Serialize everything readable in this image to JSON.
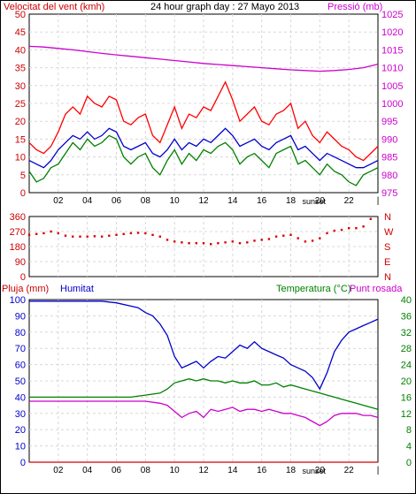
{
  "header": {
    "wind_label": "Velocitat del vent (kmh)",
    "title": "24 hour graph day : 27 Mayo 2013",
    "pressure_label": "Pressió (mb)"
  },
  "lower_header": {
    "rain_label": "Pluja (mm)",
    "humidity_label": "Humitat",
    "temp_label": "Temperatura (°C)",
    "dew_label": "Punt rosada"
  },
  "sunset_label": "sunset",
  "x_ticks": [
    "02",
    "04",
    "06",
    "08",
    "10",
    "12",
    "14",
    "16",
    "18",
    "20",
    "22",
    "|"
  ],
  "colors": {
    "wind_gust": "#ff0000",
    "wind_avg": "#0000cc",
    "wind_low": "#008000",
    "pressure": "#cc00cc",
    "direction": "#dd0000",
    "humidity": "#0000cc",
    "temperature": "#008000",
    "dewpoint": "#cc00cc",
    "rain": "#cc0000",
    "axis_label_red": "#cc0000",
    "axis_label_blue": "#0000cc",
    "axis_label_green": "#008000"
  },
  "chart_data": [
    {
      "type": "line",
      "name": "wind_pressure",
      "x_unit": "hours",
      "xlim": [
        0,
        24
      ],
      "y_ticks_left": [
        "0",
        "5",
        "10",
        "15",
        "20",
        "25",
        "30",
        "35",
        "40",
        "45",
        "50"
      ],
      "ylim_left": [
        0,
        50
      ],
      "y_ticks_right": [
        "975",
        "980",
        "985",
        "990",
        "995",
        "1000",
        "1005",
        "1010",
        "1015",
        "1020",
        "1025"
      ],
      "ylim_right": [
        975,
        1025
      ],
      "series": [
        {
          "key": "gust",
          "axis": "left",
          "x": [
            0,
            0.5,
            1,
            1.5,
            2,
            2.5,
            3,
            3.5,
            4,
            4.5,
            5,
            5.5,
            6,
            6.5,
            7,
            7.5,
            8,
            8.5,
            9,
            9.5,
            10,
            10.5,
            11,
            11.5,
            12,
            12.5,
            13,
            13.5,
            14,
            14.5,
            15,
            15.5,
            16,
            16.5,
            17,
            17.5,
            18,
            18.5,
            19,
            19.5,
            20,
            20.5,
            21,
            21.5,
            22,
            22.5,
            23,
            23.5,
            24
          ],
          "y": [
            14,
            12,
            11,
            13,
            17,
            22,
            24,
            22,
            27,
            25,
            24,
            27,
            26,
            20,
            19,
            21,
            22,
            16,
            14,
            19,
            24,
            18,
            22,
            21,
            24,
            23,
            27,
            31,
            26,
            20,
            22,
            24,
            20,
            19,
            22,
            23,
            25,
            18,
            20,
            16,
            14,
            17,
            15,
            13,
            12,
            10,
            9,
            11,
            13
          ]
        },
        {
          "key": "avg",
          "axis": "left",
          "x": [
            0,
            0.5,
            1,
            1.5,
            2,
            2.5,
            3,
            3.5,
            4,
            4.5,
            5,
            5.5,
            6,
            6.5,
            7,
            7.5,
            8,
            8.5,
            9,
            9.5,
            10,
            10.5,
            11,
            11.5,
            12,
            12.5,
            13,
            13.5,
            14,
            14.5,
            15,
            15.5,
            16,
            16.5,
            17,
            17.5,
            18,
            18.5,
            19,
            19.5,
            20,
            20.5,
            21,
            21.5,
            22,
            22.5,
            23,
            23.5,
            24
          ],
          "y": [
            9,
            8,
            7,
            9,
            12,
            14,
            16,
            15,
            17,
            15,
            16,
            18,
            17,
            13,
            12,
            13,
            14,
            11,
            10,
            12,
            15,
            12,
            14,
            13,
            15,
            14,
            16,
            18,
            16,
            13,
            14,
            15,
            13,
            12,
            14,
            15,
            16,
            12,
            13,
            11,
            9,
            11,
            10,
            9,
            8,
            7,
            7,
            8,
            9
          ]
        },
        {
          "key": "low",
          "axis": "left",
          "x": [
            0,
            0.5,
            1,
            1.5,
            2,
            2.5,
            3,
            3.5,
            4,
            4.5,
            5,
            5.5,
            6,
            6.5,
            7,
            7.5,
            8,
            8.5,
            9,
            9.5,
            10,
            10.5,
            11,
            11.5,
            12,
            12.5,
            13,
            13.5,
            14,
            14.5,
            15,
            15.5,
            16,
            16.5,
            17,
            17.5,
            18,
            18.5,
            19,
            19.5,
            20,
            20.5,
            21,
            21.5,
            22,
            22.5,
            23,
            23.5,
            24
          ],
          "y": [
            6,
            3,
            4,
            7,
            8,
            11,
            14,
            12,
            15,
            13,
            14,
            16,
            15,
            10,
            8,
            10,
            11,
            7,
            5,
            9,
            12,
            8,
            11,
            9,
            12,
            11,
            13,
            14,
            12,
            8,
            10,
            11,
            9,
            7,
            11,
            12,
            13,
            8,
            9,
            7,
            5,
            8,
            6,
            5,
            3,
            2,
            5,
            6,
            7
          ]
        },
        {
          "key": "pressure",
          "axis": "right",
          "x": [
            0,
            1,
            2,
            3,
            4,
            5,
            6,
            7,
            8,
            9,
            10,
            11,
            12,
            13,
            14,
            15,
            16,
            17,
            18,
            19,
            20,
            21,
            22,
            23,
            24
          ],
          "y": [
            1016,
            1015.8,
            1015.4,
            1015,
            1014.5,
            1014,
            1013.6,
            1013.2,
            1012.8,
            1012.4,
            1012,
            1011.6,
            1011.2,
            1010.9,
            1010.6,
            1010.3,
            1010,
            1009.7,
            1009.4,
            1009.2,
            1009,
            1009.2,
            1009.5,
            1010,
            1011
          ]
        }
      ]
    },
    {
      "type": "scatter",
      "name": "wind_direction",
      "x_unit": "hours",
      "xlim": [
        0,
        24
      ],
      "y_ticks_left": [
        "0",
        "90",
        "180",
        "270",
        "360"
      ],
      "y_ticks_right": [
        "N",
        "E",
        "S",
        "W",
        "N"
      ],
      "ylim": [
        0,
        360
      ],
      "series": [
        {
          "key": "direction",
          "x": [
            0,
            0.5,
            1,
            1.5,
            2,
            2.5,
            3,
            3.5,
            4,
            4.5,
            5,
            5.5,
            6,
            6.5,
            7,
            7.5,
            8,
            8.5,
            9,
            9.5,
            10,
            10.5,
            11,
            11.5,
            12,
            12.5,
            13,
            13.5,
            14,
            14.5,
            15,
            15.5,
            16,
            16.5,
            17,
            17.5,
            18,
            18.5,
            19,
            19.5,
            20,
            20.5,
            21,
            21.5,
            22,
            22.5,
            23,
            23.5
          ],
          "y": [
            250,
            255,
            260,
            270,
            260,
            245,
            240,
            240,
            240,
            242,
            240,
            245,
            250,
            255,
            260,
            262,
            260,
            250,
            240,
            220,
            210,
            205,
            200,
            200,
            200,
            195,
            200,
            205,
            210,
            200,
            205,
            215,
            220,
            225,
            240,
            245,
            250,
            230,
            210,
            215,
            230,
            260,
            275,
            280,
            290,
            290,
            300,
            345
          ]
        }
      ]
    },
    {
      "type": "line",
      "name": "humidity_temperature",
      "x_unit": "hours",
      "xlim": [
        0,
        24
      ],
      "y_ticks_left": [
        "0",
        "10",
        "20",
        "30",
        "40",
        "50",
        "60",
        "70",
        "80",
        "90",
        "100"
      ],
      "ylim_left": [
        0,
        100
      ],
      "y_ticks_right": [
        "0",
        "4",
        "8",
        "12",
        "16",
        "20",
        "24",
        "28",
        "32",
        "36",
        "40"
      ],
      "ylim_right": [
        0,
        40
      ],
      "series": [
        {
          "key": "humidity",
          "axis": "left",
          "x": [
            0,
            1,
            2,
            3,
            4,
            5,
            6,
            7,
            7.5,
            8,
            8.5,
            9,
            9.5,
            10,
            10.5,
            11,
            11.5,
            12,
            12.5,
            13,
            13.5,
            14,
            14.5,
            15,
            15.5,
            16,
            16.5,
            17,
            17.5,
            18,
            18.5,
            19,
            19.5,
            20,
            20.5,
            21,
            21.5,
            22,
            22.5,
            23,
            23.5,
            24
          ],
          "y": [
            99,
            99,
            99,
            99,
            99,
            99,
            98,
            96,
            95,
            92,
            90,
            85,
            78,
            65,
            58,
            60,
            62,
            58,
            62,
            65,
            64,
            68,
            72,
            70,
            74,
            70,
            68,
            66,
            64,
            60,
            58,
            56,
            52,
            45,
            55,
            68,
            75,
            80,
            82,
            84,
            86,
            88
          ]
        },
        {
          "key": "temperature",
          "axis": "right",
          "x": [
            0,
            1,
            2,
            3,
            4,
            5,
            6,
            7,
            8,
            9,
            9.5,
            10,
            10.5,
            11,
            11.5,
            12,
            12.5,
            13,
            13.5,
            14,
            14.5,
            15,
            15.5,
            16,
            16.5,
            17,
            17.5,
            18,
            18.5,
            19,
            19.5,
            20,
            20.5,
            21,
            21.5,
            22,
            22.5,
            23,
            23.5,
            24
          ],
          "y": [
            16,
            16,
            16,
            16,
            16,
            16,
            16,
            16,
            16.5,
            17,
            18,
            19.5,
            20,
            20.5,
            20,
            20.5,
            20,
            20,
            19.5,
            20,
            19.5,
            19.5,
            20,
            19,
            19,
            19.5,
            18.5,
            19,
            18.5,
            18,
            17.5,
            17,
            16.5,
            16,
            15.5,
            15,
            14.5,
            14,
            13.5,
            13
          ]
        },
        {
          "key": "dewpoint",
          "axis": "right",
          "x": [
            0,
            1,
            2,
            3,
            4,
            5,
            6,
            7,
            8,
            9,
            9.5,
            10,
            10.5,
            11,
            11.5,
            12,
            12.5,
            13,
            13.5,
            14,
            14.5,
            15,
            15.5,
            16,
            16.5,
            17,
            17.5,
            18,
            18.5,
            19,
            19.5,
            20,
            20.5,
            21,
            21.5,
            22,
            22.5,
            23,
            23.5,
            24
          ],
          "y": [
            15,
            15,
            15,
            15,
            15,
            15,
            15,
            15,
            15,
            14.5,
            14,
            12.5,
            11,
            12,
            12.5,
            11,
            13,
            12.5,
            13,
            13.5,
            12.5,
            13,
            13,
            12.5,
            13,
            12.5,
            12,
            12,
            11.5,
            11,
            10,
            9,
            10,
            11.5,
            12,
            12,
            12,
            11.5,
            11.5,
            11
          ]
        },
        {
          "key": "rain",
          "axis": "left",
          "x": [
            0,
            24
          ],
          "y": [
            0,
            0
          ]
        }
      ]
    }
  ]
}
